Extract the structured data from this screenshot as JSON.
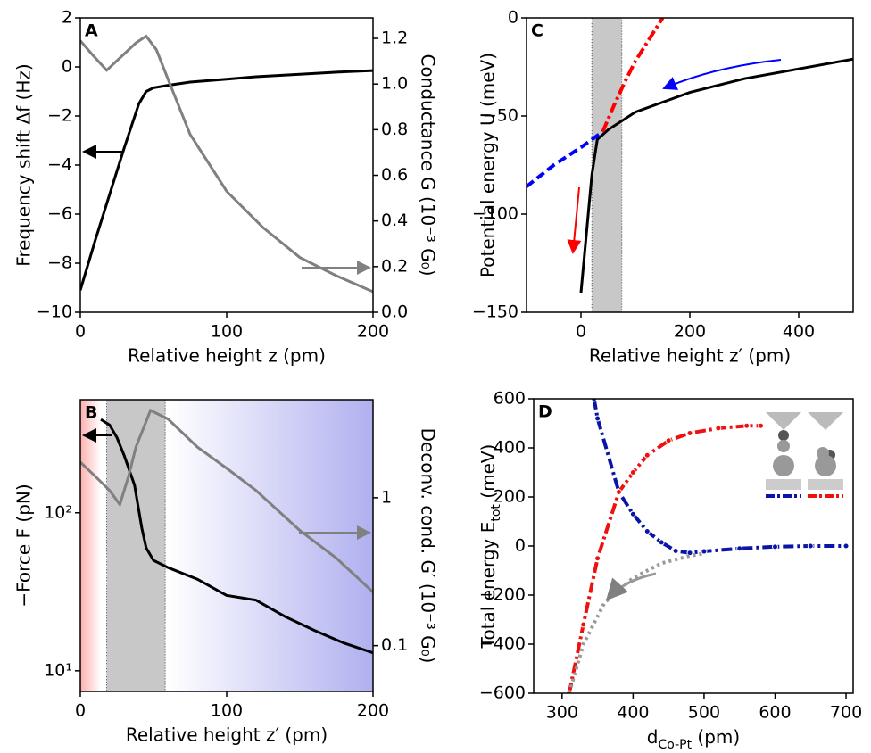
{
  "chart_data": [
    {
      "type": "line",
      "label": "A",
      "xlabel": "Relative height z (pm)",
      "ylabel": "Frequency shift Δf (Hz)",
      "y2label": "Conductance G (10⁻³ G₀)",
      "xlim": [
        0,
        200
      ],
      "xticks": [
        0,
        100,
        200
      ],
      "ylim": [
        -10,
        2
      ],
      "yticks": [
        2,
        0,
        {
          "value": -2,
          "label": "−2"
        },
        {
          "value": -4,
          "label": "−4"
        },
        {
          "value": -6,
          "label": "−6"
        },
        {
          "value": -8,
          "label": "−8"
        },
        {
          "value": -10,
          "label": "−10"
        }
      ],
      "y2lim": [
        0,
        1.29
      ],
      "y2ticks": [
        {
          "value": 0,
          "label": "0.0"
        },
        0.2,
        0.4,
        0.6,
        0.8,
        {
          "value": 1,
          "label": "1.0"
        },
        1.2
      ],
      "series": [
        {
          "color": "#000000",
          "style": "solid",
          "x": [
            0,
            10,
            20,
            30,
            40,
            45,
            50,
            60,
            75,
            100,
            120,
            150,
            180,
            200
          ],
          "values": [
            -9.1,
            -7.1,
            -5.2,
            -3.3,
            -1.5,
            -1.0,
            -0.85,
            -0.75,
            -0.62,
            -0.5,
            -0.4,
            -0.3,
            -0.2,
            -0.15
          ]
        },
        {
          "color": "#808080",
          "style": "solid",
          "axis": "y2",
          "x": [
            0,
            8,
            18,
            28,
            38,
            45,
            52,
            60,
            75,
            100,
            125,
            150,
            175,
            200
          ],
          "values": [
            1.19,
            1.13,
            1.06,
            1.12,
            1.18,
            1.21,
            1.15,
            1.02,
            0.78,
            0.53,
            0.37,
            0.24,
            0.16,
            0.09
          ]
        }
      ]
    },
    {
      "type": "line",
      "label": "B",
      "log_scale": true,
      "background_gradient": true,
      "xlabel": "Relative height z′ (pm)",
      "ylabel": "−Force F (pN)",
      "y2label": "Deconv. cond. G′ (10⁻³ G₀)",
      "xlim": [
        0,
        200
      ],
      "xticks": [
        0,
        100,
        200
      ],
      "shaded": [
        18,
        58
      ],
      "ylim": [
        7.4,
        520
      ],
      "yticks": [
        {
          "value": 10,
          "label": "10¹"
        },
        {
          "value": 100,
          "label": "10²"
        }
      ],
      "y2lim": [
        0.049,
        4.6
      ],
      "y2ticks": [
        1,
        0.1
      ],
      "series": [
        {
          "color": "#000000",
          "style": "solid",
          "x": [
            14,
            20,
            25,
            30,
            37,
            42,
            45,
            50,
            60,
            80,
            100,
            120,
            140,
            160,
            180,
            200
          ],
          "values": [
            390,
            360,
            300,
            230,
            150,
            80,
            60,
            50,
            45,
            38,
            30,
            28,
            22,
            18,
            15,
            13
          ]
        },
        {
          "color": "#808080",
          "style": "solid",
          "axis": "y2",
          "x": [
            0,
            10,
            20,
            27,
            33,
            38,
            48,
            60,
            80,
            100,
            120,
            150,
            175,
            200
          ],
          "values": [
            1.74,
            1.4,
            1.12,
            0.9,
            1.4,
            2.2,
            3.9,
            3.4,
            2.2,
            1.58,
            1.12,
            0.6,
            0.39,
            0.23
          ]
        }
      ]
    },
    {
      "type": "line",
      "label": "C",
      "xlabel": "Relative height z′ (pm)",
      "ylabel": "Potential energy U (meV)",
      "xlim": [
        -100,
        500
      ],
      "xticks": [
        0,
        200,
        400
      ],
      "shaded": [
        20,
        75
      ],
      "ylim": [
        -150,
        0
      ],
      "yticks": [
        0,
        {
          "value": -50,
          "label": "−50"
        },
        {
          "value": -100,
          "label": "−100"
        },
        {
          "value": -150,
          "label": "−150"
        }
      ],
      "series": [
        {
          "color": "#000000",
          "style": "solid",
          "x": [
            0,
            10,
            20,
            30,
            50,
            100,
            200,
            300,
            400,
            500
          ],
          "values": [
            -140,
            -110,
            -80,
            -62,
            -57,
            -48,
            -38,
            -31,
            -26,
            -21
          ]
        },
        {
          "color": "#ff0000",
          "style": "dashdot",
          "x": [
            40,
            60,
            80,
            100,
            125,
            150
          ],
          "values": [
            -58,
            -45,
            -33,
            -22,
            -11,
            0
          ]
        },
        {
          "color": "#0000ff",
          "style": "dashed",
          "x": [
            -100,
            -50,
            0,
            40
          ],
          "values": [
            -86,
            -75,
            -66,
            -58
          ]
        }
      ]
    },
    {
      "type": "line",
      "label": "D",
      "xlabel": [
        "d",
        "Co-Pt",
        " (pm)"
      ],
      "ylabel": [
        "Total energy E",
        "tot",
        " (meV)"
      ],
      "xlim": [
        260,
        710
      ],
      "xticks": [
        300,
        400,
        500,
        600,
        700
      ],
      "ylim": [
        -600,
        600
      ],
      "yticks": [
        600,
        400,
        200,
        0,
        {
          "value": -200,
          "label": "−200"
        },
        {
          "value": -400,
          "label": "−400"
        },
        {
          "value": -600,
          "label": "−600"
        }
      ],
      "series": [
        {
          "color": "#0a14a8",
          "style": "dashdot",
          "markers": true,
          "x": [
            345,
            350,
            380,
            400,
            420,
            440,
            460,
            480,
            500,
            550,
            600,
            650,
            700
          ],
          "values": [
            600,
            520,
            220,
            130,
            60,
            15,
            -20,
            -28,
            -22,
            -10,
            -3,
            0,
            0
          ]
        },
        {
          "color": "#ee1111",
          "style": "dashdot",
          "markers": true,
          "x": [
            310,
            330,
            350,
            380,
            400,
            420,
            450,
            480,
            520,
            560,
            580
          ],
          "values": [
            -600,
            -320,
            -50,
            220,
            300,
            370,
            430,
            460,
            480,
            490,
            490
          ]
        },
        {
          "color": "#999999",
          "style": "dotted",
          "x": [
            310,
            330,
            360,
            400,
            440,
            480,
            500
          ],
          "values": [
            -600,
            -400,
            -230,
            -130,
            -70,
            -40,
            -30
          ]
        }
      ]
    }
  ]
}
